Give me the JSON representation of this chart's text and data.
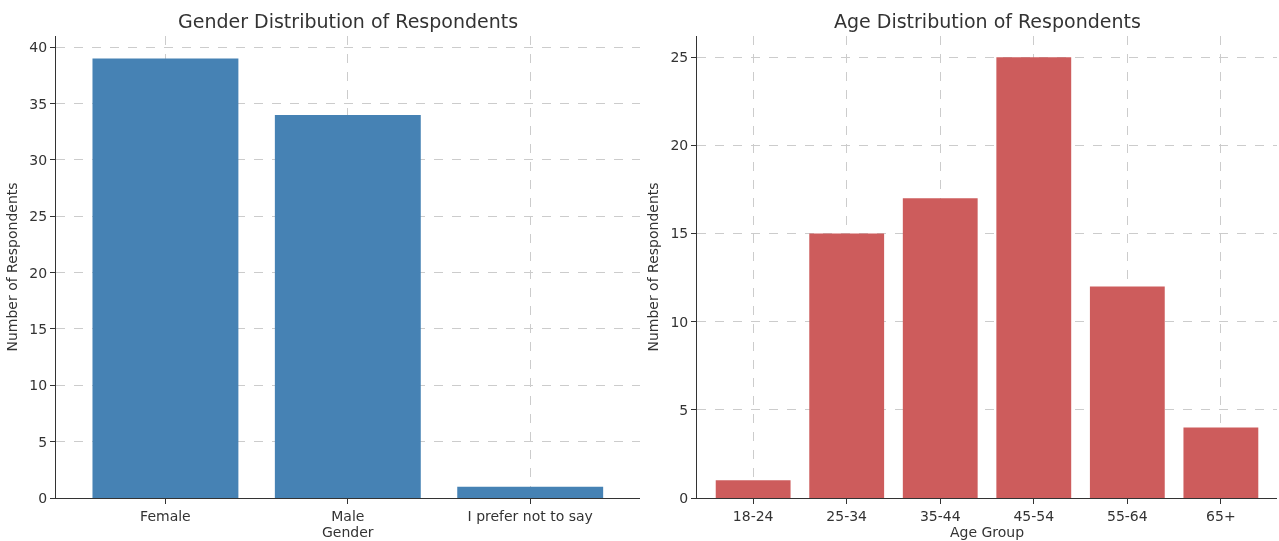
{
  "chart_data": [
    {
      "type": "bar",
      "title": "Gender Distribution of Respondents",
      "xlabel": "Gender",
      "ylabel": "Number of Respondents",
      "categories": [
        "Female",
        "Male",
        "I prefer not to say"
      ],
      "values": [
        39,
        34,
        1
      ],
      "color": "#4682b4",
      "ylim": [
        0,
        41
      ],
      "yticks": [
        0,
        5,
        10,
        15,
        20,
        25,
        30,
        35,
        40
      ],
      "grid": true,
      "line_style": "dashed"
    },
    {
      "type": "bar",
      "title": "Age Distribution of Respondents",
      "xlabel": "Age Group",
      "ylabel": "Number of Respondents",
      "categories": [
        "18-24",
        "25-34",
        "35-44",
        "45-54",
        "55-64",
        "65+"
      ],
      "values": [
        1,
        15,
        17,
        25,
        12,
        4
      ],
      "color": "#cd5c5c",
      "ylim": [
        0,
        26.2
      ],
      "yticks": [
        0,
        5,
        10,
        15,
        20,
        25
      ],
      "grid": true,
      "line_style": "dashed"
    }
  ]
}
